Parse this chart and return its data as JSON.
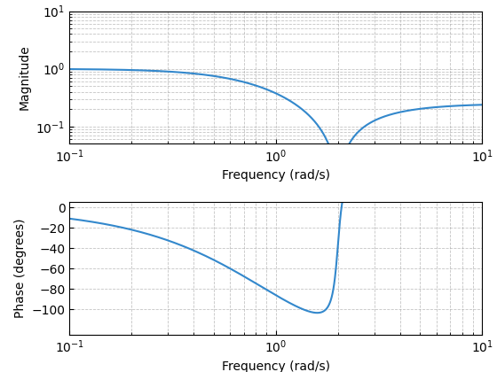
{
  "freq_min": 0.1,
  "freq_max": 10,
  "num_points": 2000,
  "line_color": "#3388CC",
  "line_width": 1.5,
  "tf_num": [
    1,
    0.2,
    4
  ],
  "tf_den": [
    4,
    8,
    4
  ],
  "xlabel": "Frequency (rad/s)",
  "ylabel_mag": "Magnitude",
  "ylabel_phase": "Phase (degrees)",
  "mag_ylim": [
    0.05,
    10
  ],
  "phase_ylim": [
    -125,
    5
  ],
  "phase_yticks": [
    0,
    -20,
    -40,
    -60,
    -80,
    -100
  ],
  "grid_color": "#aaaaaa"
}
